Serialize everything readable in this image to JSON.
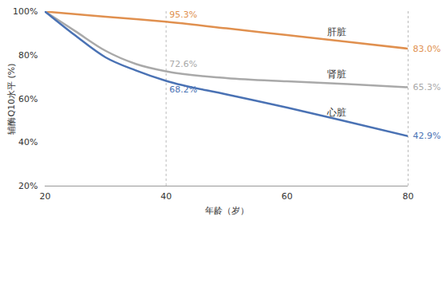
{
  "chart_data": {
    "type": "line",
    "xlabel": "年龄（岁）",
    "ylabel": "辅酶Q10水平 (%)",
    "xlim": [
      20,
      80
    ],
    "xticks": [
      20,
      40,
      60,
      80
    ],
    "ylim": [
      20,
      100
    ],
    "yticks": [
      {
        "value": 20,
        "label": "20%"
      },
      {
        "value": 40,
        "label": "40%"
      },
      {
        "value": 60,
        "label": "60%"
      },
      {
        "value": 80,
        "label": "80%"
      },
      {
        "value": 100,
        "label": "100%"
      }
    ],
    "data_labels": true,
    "x": [
      20,
      25,
      30,
      35,
      40,
      50,
      60,
      70,
      80
    ],
    "series": [
      {
        "name": "肝脏",
        "color": "#e0904f",
        "values": [
          100,
          98.8,
          97.6,
          96.5,
          95.3,
          92.3,
          89.2,
          86.1,
          83.0
        ],
        "value_labels": [
          null,
          null,
          null,
          null,
          "95.3%",
          null,
          null,
          null,
          "83.0%"
        ]
      },
      {
        "name": "肾脏",
        "color": "#a9a9a9",
        "values": [
          100,
          91,
          82,
          76,
          72.6,
          69.5,
          68,
          66.8,
          65.3
        ],
        "value_labels": [
          null,
          null,
          null,
          null,
          "72.6%",
          null,
          null,
          null,
          "65.3%"
        ]
      },
      {
        "name": "心脏",
        "color": "#4a72b4",
        "values": [
          100,
          89,
          79,
          73,
          68.2,
          62,
          56,
          49.5,
          42.9
        ],
        "value_labels": [
          null,
          null,
          null,
          null,
          "68.2%",
          null,
          null,
          null,
          "42.9%"
        ]
      }
    ]
  }
}
